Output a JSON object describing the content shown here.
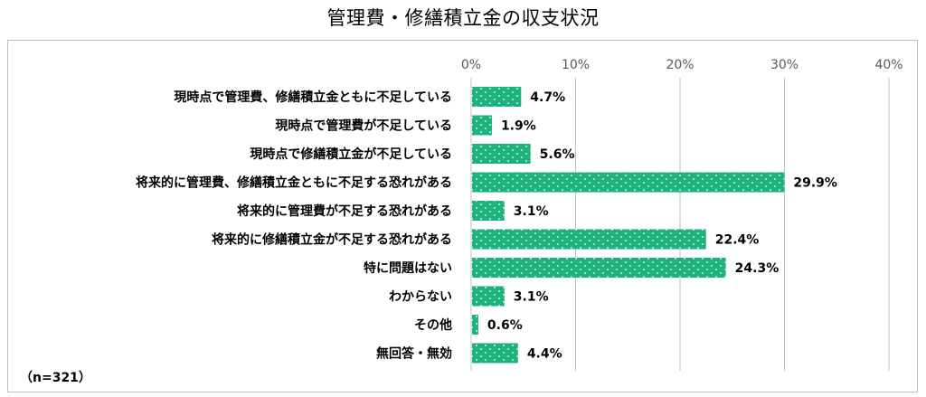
{
  "title": "管理費・修繕積立金の収支状況",
  "note": "（n=321）",
  "colors": {
    "bar": "#1db37a",
    "bar_dot": "#ffffff",
    "grid": "#bfbfbf"
  },
  "chart_data": {
    "type": "bar",
    "orientation": "horizontal",
    "categories": [
      "現時点で管理費、修繕積立金ともに不足している",
      "現時点で管理費が不足している",
      "現時点で修繕積立金が不足している",
      "将来的に管理費、修繕積立金ともに不足する恐れがある",
      "将来的に管理費が不足する恐れがある",
      "将来的に修繕積立金が不足する恐れがある",
      "特に問題はない",
      "わからない",
      "その他",
      "無回答・無効"
    ],
    "values": [
      4.7,
      1.9,
      5.6,
      29.9,
      3.1,
      22.4,
      24.3,
      3.1,
      0.6,
      4.4
    ],
    "value_labels": [
      "4.7%",
      "1.9%",
      "5.6%",
      "29.9%",
      "3.1%",
      "22.4%",
      "24.3%",
      "3.1%",
      "0.6%",
      "4.4%"
    ],
    "xlim": [
      0,
      40
    ],
    "xticks": [
      0,
      10,
      20,
      30,
      40
    ],
    "xtick_labels": [
      "0%",
      "10%",
      "20%",
      "30%",
      "40%"
    ],
    "grid": true,
    "legend": "none"
  }
}
